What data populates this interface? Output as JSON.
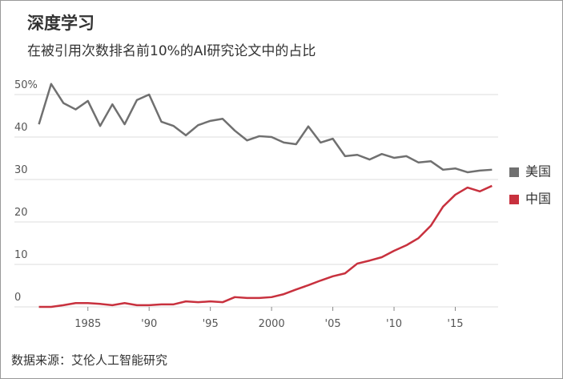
{
  "chart_data": {
    "type": "line",
    "title": "深度学习",
    "subtitle": "在被引用次数排名前10%的AI研究论文中的占比",
    "source": "数据来源：艾伦人工智能研究",
    "x": [
      1981,
      1982,
      1983,
      1984,
      1985,
      1986,
      1987,
      1988,
      1989,
      1990,
      1991,
      1992,
      1993,
      1994,
      1995,
      1996,
      1997,
      1998,
      1999,
      2000,
      2001,
      2002,
      2003,
      2004,
      2005,
      2006,
      2007,
      2008,
      2009,
      2010,
      2011,
      2012,
      2013,
      2014,
      2015,
      2016,
      2017,
      2018
    ],
    "series": [
      {
        "name": "美国",
        "color": "#707070",
        "values": [
          43,
          52.5,
          48,
          46.5,
          48.5,
          42.6,
          47.7,
          43,
          48.7,
          50,
          43.6,
          42.6,
          40.4,
          42.8,
          43.8,
          44.3,
          41.5,
          39.2,
          40.2,
          40,
          38.7,
          38.3,
          42.5,
          38.7,
          39.6,
          35.5,
          35.8,
          34.7,
          36,
          35.1,
          35.5,
          34,
          34.3,
          32.3,
          32.6,
          31.7,
          32.1,
          32.3
        ]
      },
      {
        "name": "中国",
        "color": "#c8313e",
        "values": [
          0,
          0,
          0.4,
          0.9,
          0.9,
          0.7,
          0.4,
          0.9,
          0.4,
          0.4,
          0.6,
          0.6,
          1.3,
          1.1,
          1.3,
          1.1,
          2.3,
          2.1,
          2.1,
          2.3,
          3.0,
          4.1,
          5.1,
          6.2,
          7.2,
          7.9,
          10.2,
          10.9,
          11.7,
          13.2,
          14.5,
          16.2,
          19.1,
          23.6,
          26.4,
          28.1,
          27.2,
          28.5
        ]
      }
    ],
    "xlim": [
      1979,
      2018.5
    ],
    "xticks": [
      1985,
      {
        "value": 1990,
        "label": "'90"
      },
      {
        "value": 1995,
        "label": "'95"
      },
      2000,
      {
        "value": 2005,
        "label": "'05"
      },
      {
        "value": 2010,
        "label": "'10"
      },
      {
        "value": 2015,
        "label": "'15"
      }
    ],
    "ylim": [
      0,
      55
    ],
    "yticks": [
      0,
      10,
      20,
      30,
      40,
      {
        "value": 50,
        "label": "50%"
      }
    ],
    "grid": true,
    "legend": "right"
  }
}
